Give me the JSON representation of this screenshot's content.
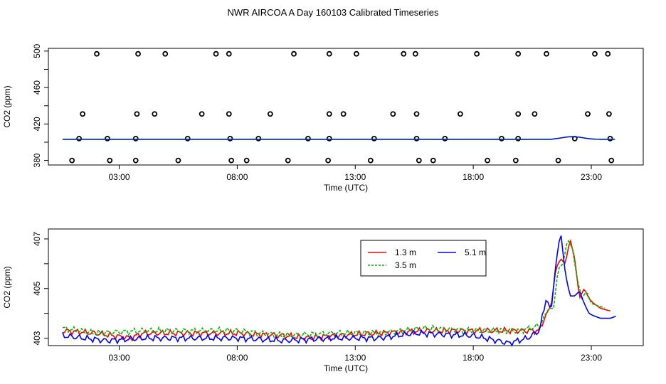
{
  "title": "NWR AIRCOA A  Day 160103  Calibrated Timeseries",
  "chart_data": [
    {
      "type": "scatter",
      "panel": "top",
      "xlabel": "Time (UTC)",
      "ylabel": "CO2 (ppm)",
      "xlim": [
        0,
        25.2
      ],
      "ylim": [
        375,
        503
      ],
      "xticks": [
        3,
        8,
        13,
        18,
        23
      ],
      "xtick_labels": [
        "03:00",
        "08:00",
        "13:00",
        "18:00",
        "23:00"
      ],
      "yticks": [
        380,
        420,
        460,
        500
      ],
      "ytick_labels": [
        "380",
        "420",
        "460",
        "500"
      ],
      "yticks_unlabeled": [
        400,
        440,
        480
      ],
      "points_500": [
        2.05,
        3.8,
        4.95,
        7.1,
        7.65,
        10.4,
        11.9,
        13.05,
        15.05,
        15.55,
        18.15,
        19.9,
        21.1,
        23.15,
        23.7
      ],
      "points_431": [
        1.45,
        3.75,
        4.5,
        6.5,
        7.65,
        9.4,
        11.9,
        12.5,
        14.6,
        15.6,
        17.45,
        19.9,
        20.6,
        22.85,
        23.75
      ],
      "points_403": [
        1.3,
        2.5,
        3.7,
        5.9,
        7.7,
        8.9,
        11.0,
        11.9,
        13.8,
        15.6,
        16.8,
        19.2,
        19.9,
        22.3,
        23.8
      ],
      "points_380": [
        1.0,
        2.6,
        3.7,
        5.5,
        7.75,
        8.4,
        10.15,
        11.85,
        13.65,
        15.7,
        16.3,
        18.6,
        19.8,
        21.6,
        23.85
      ],
      "series": [
        {
          "name": "1.3 m",
          "color": "#ff0000",
          "level": 403.2
        },
        {
          "name": "3.5 m",
          "color": "#00bb00",
          "level": 403.3
        },
        {
          "name": "5.1 m",
          "color": "#0000ff",
          "level": 403.0
        }
      ]
    },
    {
      "type": "line",
      "panel": "bottom",
      "xlabel": "Time (UTC)",
      "ylabel": "CO2 (ppm)",
      "xlim": [
        0,
        25.2
      ],
      "ylim": [
        402.7,
        407.4
      ],
      "xticks": [
        3,
        8,
        13,
        18,
        23
      ],
      "xtick_labels": [
        "03:00",
        "08:00",
        "13:00",
        "18:00",
        "23:00"
      ],
      "yticks": [
        403,
        405,
        407
      ],
      "ytick_labels": [
        "403",
        "405",
        "407"
      ],
      "yticks_unlabeled": [
        404,
        406
      ],
      "legend": {
        "position": "top-right-inset",
        "entries": [
          {
            "label": "1.3 m",
            "color": "#ff0000",
            "style": "solid"
          },
          {
            "label": "5.1 m",
            "color": "#0000ff",
            "style": "solid"
          },
          {
            "label": "3.5 m",
            "color": "#00bb00",
            "style": "dashed"
          }
        ]
      },
      "series": [
        {
          "name": "1.3 m",
          "color": "#ff0000",
          "dash": "",
          "x": [
            0.6,
            2,
            3.5,
            4,
            6,
            8,
            10,
            11,
            12,
            14,
            16,
            18,
            20,
            20.8,
            21.1,
            21.3,
            21.5,
            21.7,
            21.9,
            22.1,
            22.3,
            22.5,
            22.7,
            22.9,
            23.1,
            23.4,
            23.8
          ],
          "y": [
            403.3,
            403.2,
            403.0,
            403.2,
            403.2,
            403.2,
            403.1,
            403.0,
            403.1,
            403.2,
            403.3,
            403.3,
            403.3,
            403.3,
            404.0,
            404.3,
            405.8,
            406.2,
            406.0,
            407.0,
            406.2,
            404.6,
            405.0,
            404.6,
            404.4,
            404.2,
            404.1
          ]
        },
        {
          "name": "3.5 m",
          "color": "#00bb00",
          "dash": "4,2",
          "x": [
            0.6,
            2,
            4,
            6,
            8,
            10,
            12,
            14,
            16,
            18,
            20,
            20.8,
            21.2,
            21.4,
            21.6,
            21.8,
            22.0,
            22.2,
            22.4,
            22.6,
            22.8,
            23.0,
            23.3,
            23.6
          ],
          "y": [
            403.4,
            403.2,
            403.3,
            403.3,
            403.3,
            403.1,
            403.2,
            403.2,
            403.4,
            403.3,
            403.3,
            403.5,
            404.2,
            404.2,
            405.8,
            406.0,
            407.0,
            406.6,
            405.4,
            404.6,
            404.9,
            404.4,
            404.3,
            404.2
          ]
        },
        {
          "name": "5.1 m",
          "color": "#0000ff",
          "dash": "",
          "x": [
            0.6,
            1.5,
            2.5,
            4,
            6,
            8,
            10,
            12,
            14,
            15.5,
            18,
            19.5,
            20.3,
            20.8,
            21.1,
            21.3,
            21.5,
            21.7,
            21.9,
            22.1,
            22.3,
            22.5,
            22.7,
            22.9,
            23.1,
            23.4,
            23.8,
            24.1
          ],
          "y": [
            403.1,
            403.0,
            402.9,
            403.0,
            403.0,
            403.0,
            402.9,
            403.0,
            403.0,
            403.2,
            403.1,
            402.8,
            403.0,
            403.3,
            404.6,
            404.1,
            406.0,
            407.3,
            405.6,
            404.7,
            404.7,
            404.9,
            404.4,
            404.0,
            403.9,
            403.8,
            403.8,
            403.9
          ]
        }
      ]
    }
  ]
}
